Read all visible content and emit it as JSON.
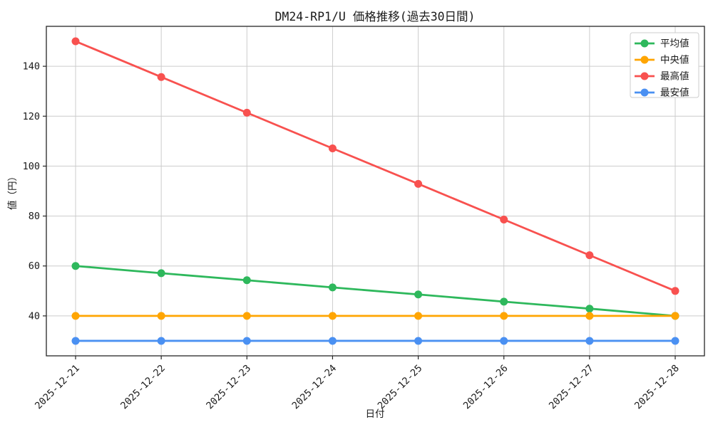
{
  "chart_data": {
    "type": "line",
    "title": "DM24-RP1/U 価格推移(過去30日間)",
    "xlabel": "日付",
    "ylabel": "値（円）",
    "categories": [
      "2025-12-21",
      "2025-12-22",
      "2025-12-23",
      "2025-12-24",
      "2025-12-25",
      "2025-12-26",
      "2025-12-27",
      "2025-12-28"
    ],
    "series": [
      {
        "id": "average",
        "name": "平均値",
        "color": "#2eb85c",
        "values": [
          60,
          57.1,
          54.3,
          51.4,
          48.6,
          45.7,
          42.9,
          40
        ]
      },
      {
        "id": "median",
        "name": "中央値",
        "color": "#ffa502",
        "values": [
          40,
          40,
          40,
          40,
          40,
          40,
          40,
          40
        ]
      },
      {
        "id": "max",
        "name": "最高値",
        "color": "#f8514f",
        "values": [
          150,
          135.7,
          121.4,
          107.1,
          92.9,
          78.6,
          64.3,
          50
        ]
      },
      {
        "id": "min",
        "name": "最安値",
        "color": "#4a90f2",
        "values": [
          30,
          30,
          30,
          30,
          30,
          30,
          30,
          30
        ]
      }
    ],
    "ylim": [
      24,
      156
    ],
    "yticks": [
      40,
      60,
      80,
      100,
      120,
      140
    ],
    "grid": true,
    "grid_color": "#cccccc",
    "spine_color": "#262626",
    "legend_position": "upper-right",
    "marker": "circle",
    "x_tick_rotation": 45
  }
}
